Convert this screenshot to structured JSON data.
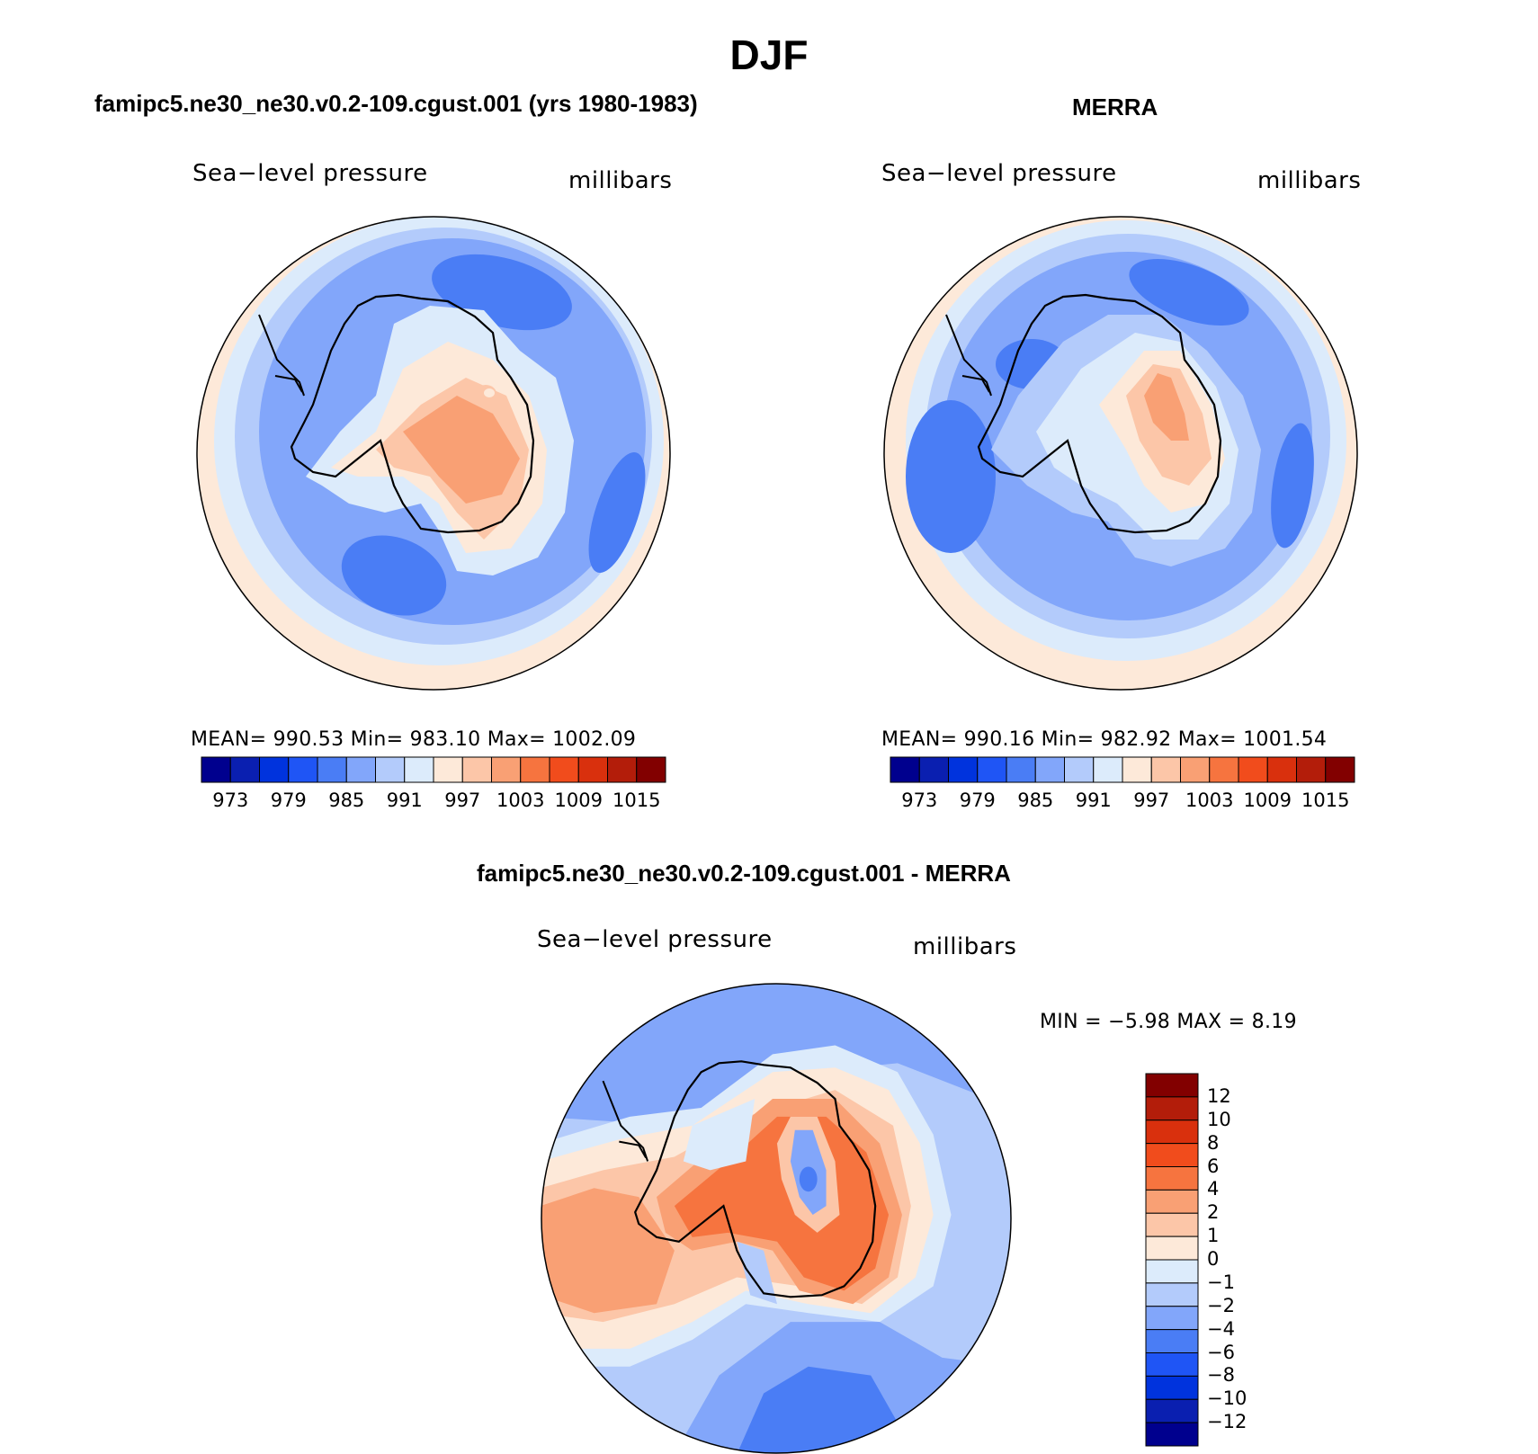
{
  "title": "DJF",
  "panels": [
    {
      "id": "model",
      "title": "famipc5.ne30_ne30.v0.2-109.cgust.001 (yrs 1980-1983)",
      "left_label": "Sea−level pressure",
      "right_label": "millibars",
      "stats": "MEAN=  990.53   Min=  983.10   Max=  1002.09"
    },
    {
      "id": "obs",
      "title": "MERRA",
      "left_label": "Sea−level pressure",
      "right_label": "millibars",
      "stats": "MEAN=  990.16   Min=  982.92   Max=  1001.54"
    },
    {
      "id": "diff",
      "title": "famipc5.ne30_ne30.v0.2-109.cgust.001 - MERRA",
      "left_label": "Sea−level pressure",
      "right_label": "millibars",
      "stats": "MIN =    −5.98  MAX =     8.19"
    }
  ],
  "colorbar_abs": {
    "labels": [
      "973",
      "979",
      "985",
      "991",
      "997",
      "1003",
      "1009",
      "1015"
    ],
    "colors": [
      "#00008e",
      "#0a1fb0",
      "#0033dd",
      "#1f55f5",
      "#4a7df5",
      "#82a6fa",
      "#b3cbfb",
      "#dcebfb",
      "#fde9d9",
      "#fcc6a8",
      "#f9a074",
      "#f6743f",
      "#f14c1c",
      "#d9300d",
      "#b31d0a",
      "#820000"
    ]
  },
  "colorbar_diff": {
    "labels": [
      "12",
      "10",
      "8",
      "6",
      "4",
      "2",
      "1",
      "0",
      "−1",
      "−2",
      "−4",
      "−6",
      "−8",
      "−10",
      "−12"
    ],
    "colors": [
      "#820000",
      "#b31d0a",
      "#d9300d",
      "#f14c1c",
      "#f6743f",
      "#f9a074",
      "#fcc6a8",
      "#fde9d9",
      "#dcebfb",
      "#b3cbfb",
      "#82a6fa",
      "#4a7df5",
      "#1f55f5",
      "#0033dd",
      "#0a1fb0",
      "#00008e"
    ]
  }
}
